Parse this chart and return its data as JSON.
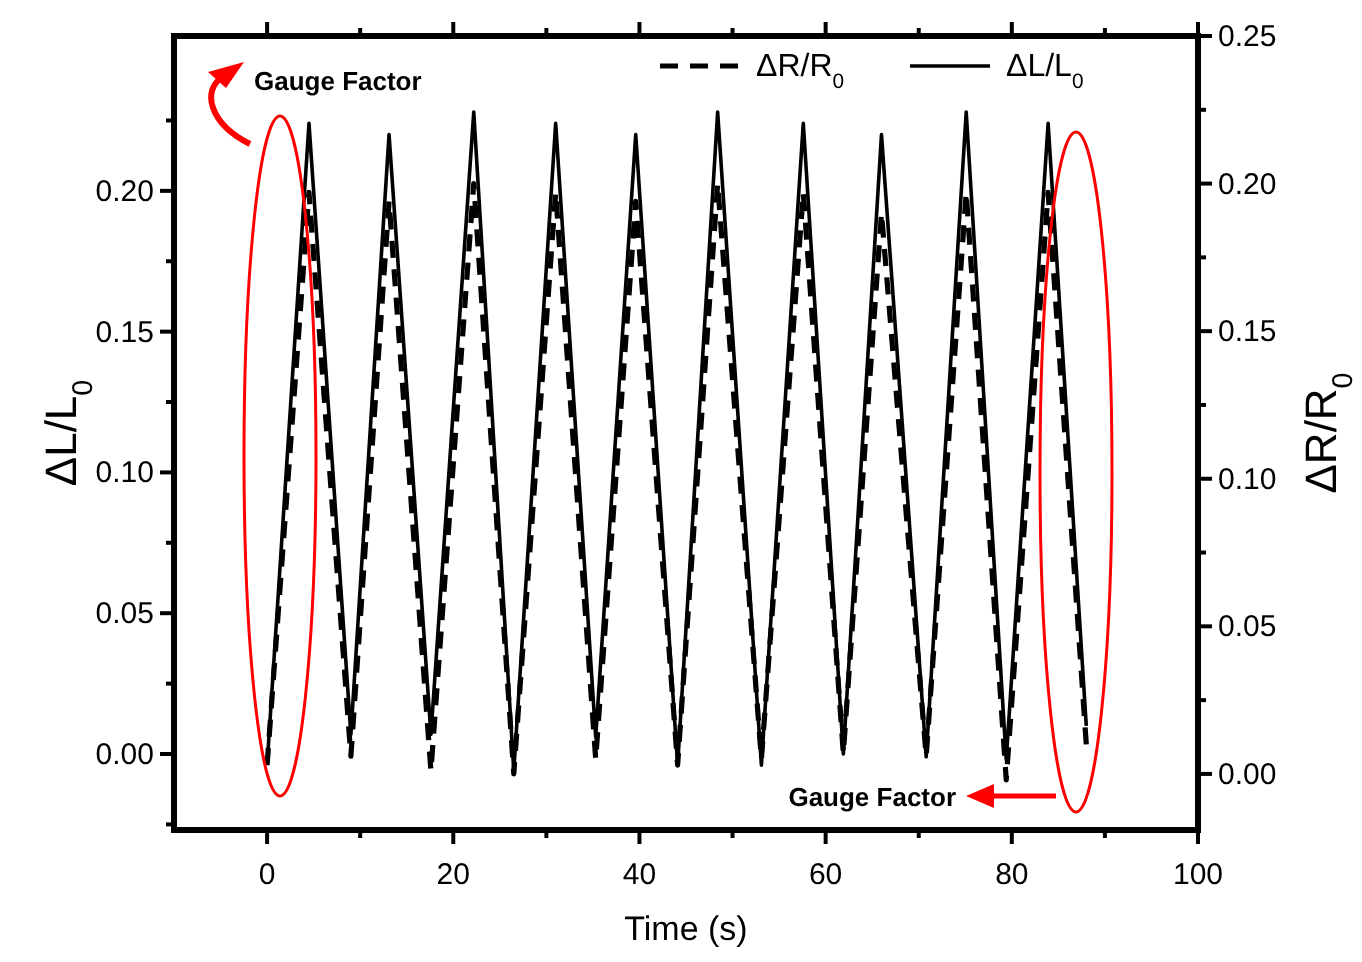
{
  "chart_data": {
    "type": "line",
    "xlabel": "Time (s)",
    "ylabel": "ΔL/L$_{0}$",
    "y2label": "ΔR/R$_{0}$",
    "annotations": [
      "Gauge Factor",
      "Gauge Factor"
    ],
    "xlim": [
      -10,
      100
    ],
    "xticks": [
      0,
      {
        "value": 10,
        "label": null
      },
      20,
      {
        "value": 30,
        "label": null
      },
      40,
      {
        "value": 50,
        "label": null
      },
      60,
      {
        "value": 70,
        "label": null
      },
      80,
      {
        "value": 90,
        "label": null
      },
      100
    ],
    "ylim": [
      -0.027,
      0.255
    ],
    "yticks": [
      {
        "value": -0.025,
        "label": null
      },
      {
        "value": 0,
        "label": "0.00"
      },
      {
        "value": 0.025,
        "label": null
      },
      {
        "value": 0.05,
        "label": "0.05"
      },
      {
        "value": 0.075,
        "label": null
      },
      {
        "value": 0.1,
        "label": "0.10"
      },
      {
        "value": 0.125,
        "label": null
      },
      {
        "value": 0.15,
        "label": "0.15"
      },
      {
        "value": 0.175,
        "label": null
      },
      {
        "value": 0.2,
        "label": "0.20"
      },
      {
        "value": 0.225,
        "label": null
      }
    ],
    "y2lim": [
      -0.019,
      0.25
    ],
    "y2ticks": [
      {
        "value": 0,
        "label": "0.00"
      },
      {
        "value": 0.025,
        "label": null
      },
      {
        "value": 0.05,
        "label": "0.05"
      },
      {
        "value": 0.075,
        "label": null
      },
      {
        "value": 0.1,
        "label": "0.10"
      },
      {
        "value": 0.125,
        "label": null
      },
      {
        "value": 0.15,
        "label": "0.15"
      },
      {
        "value": 0.175,
        "label": null
      },
      {
        "value": 0.2,
        "label": "0.20"
      },
      {
        "value": 0.225,
        "label": null
      },
      {
        "value": 0.25,
        "label": "0.25"
      }
    ],
    "legend": "top right",
    "grid": false,
    "marker": "none",
    "series": [
      {
        "name": "ΔR/R$_{0}$",
        "color": "#000000",
        "axis": "y2",
        "line_style": "dashed",
        "x": [
          0,
          4.5,
          9.0,
          13.1,
          17.6,
          22.2,
          26.5,
          31.0,
          35.3,
          39.6,
          44.1,
          48.4,
          53.1,
          57.6,
          61.9,
          66.0,
          70.8,
          75.1,
          79.4,
          83.9,
          88.0
        ],
        "values": [
          0.003,
          0.197,
          0.006,
          0.194,
          0.001,
          0.2,
          0,
          0.197,
          0.005,
          0.194,
          0.003,
          0.2,
          0.005,
          0.197,
          0.007,
          0.19,
          0.006,
          0.197,
          -0.002,
          0.197,
          0.01
        ]
      },
      {
        "name": "ΔL/L$_{0}$",
        "color": "#000000",
        "line_style": "solid",
        "x": [
          0,
          4.5,
          9.0,
          13.1,
          17.6,
          22.2,
          26.5,
          31.0,
          35.3,
          39.6,
          44.1,
          48.4,
          53.1,
          57.6,
          61.9,
          66.0,
          70.8,
          75.1,
          79.4,
          83.9,
          88.0
        ],
        "values": [
          -0.004,
          0.224,
          0.007,
          0.22,
          0.007,
          0.228,
          -0.006,
          0.224,
          0.006,
          0.22,
          -0.004,
          0.228,
          -0.004,
          0.224,
          0,
          0.22,
          -0.001,
          0.228,
          -0.002,
          0.224,
          0.01
        ]
      }
    ]
  }
}
